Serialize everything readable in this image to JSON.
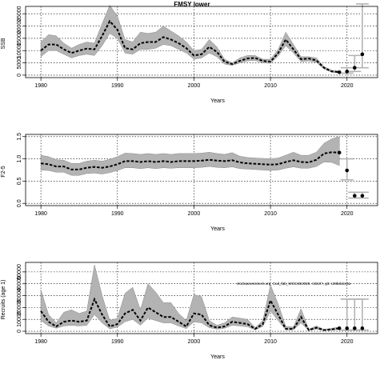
{
  "figure": {
    "title": "FMSY lower",
    "annotation": "stockassessment.org, Cod_fab_WGCSE2020, r1519?, git: c28bdc2e4a"
  },
  "chart_data": [
    {
      "type": "line",
      "title": "FMSY lower",
      "xlabel": "Years",
      "ylabel": "SSB",
      "xlim": [
        1978,
        2024
      ],
      "ylim": [
        -1000,
        28000
      ],
      "xticks": [
        1980,
        1990,
        2000,
        2010,
        2020
      ],
      "yticks": [
        0,
        5000,
        10000,
        15000,
        20000,
        25000
      ],
      "grid": "dotted",
      "x": [
        1980,
        1981,
        1982,
        1983,
        1984,
        1985,
        1986,
        1987,
        1988,
        1989,
        1990,
        1991,
        1992,
        1993,
        1994,
        1995,
        1996,
        1997,
        1998,
        1999,
        2000,
        2001,
        2002,
        2003,
        2004,
        2005,
        2006,
        2007,
        2008,
        2009,
        2010,
        2011,
        2012,
        2013,
        2014,
        2015,
        2016,
        2017,
        2018,
        2019
      ],
      "series": [
        {
          "role": "estimate",
          "values": [
            10000,
            12500,
            12500,
            10500,
            9000,
            10000,
            10800,
            10500,
            16000,
            22000,
            18500,
            11000,
            10500,
            13000,
            13500,
            13500,
            15500,
            14500,
            13000,
            11000,
            8000,
            8500,
            11500,
            9500,
            5500,
            4500,
            5800,
            6800,
            7000,
            5800,
            5500,
            9000,
            14500,
            10500,
            6500,
            6800,
            6000,
            3000,
            1500,
            1200
          ]
        },
        {
          "role": "upper",
          "values": [
            13500,
            16500,
            16000,
            13000,
            11000,
            12500,
            13500,
            13000,
            21000,
            28500,
            24000,
            14500,
            13500,
            17500,
            17000,
            17500,
            20000,
            18000,
            16000,
            13500,
            10000,
            10500,
            14500,
            11500,
            6500,
            5000,
            7000,
            8000,
            8000,
            6500,
            6500,
            10500,
            17500,
            12500,
            7500,
            7500,
            7000,
            3500,
            2000,
            1600
          ]
        },
        {
          "role": "lower",
          "values": [
            7500,
            10000,
            10000,
            8500,
            7000,
            8000,
            8500,
            8000,
            12000,
            17000,
            15000,
            9000,
            8500,
            10500,
            10500,
            11000,
            12500,
            12000,
            10500,
            9000,
            6500,
            7000,
            9000,
            7500,
            4500,
            4000,
            5000,
            5800,
            6000,
            5000,
            4800,
            7800,
            12000,
            9000,
            5500,
            5800,
            5200,
            2500,
            1200,
            900
          ]
        }
      ],
      "forecast": {
        "x": [
          2019,
          2020,
          2021,
          2022
        ],
        "median": [
          1200,
          1500,
          3000,
          8500
        ],
        "upper": [
          2000,
          3000,
          8000,
          29000
        ],
        "lower": [
          800,
          800,
          1500,
          3000
        ]
      }
    },
    {
      "type": "line",
      "xlabel": "Years",
      "ylabel": "F2-5",
      "xlim": [
        1978,
        2024
      ],
      "ylim": [
        -0.05,
        1.55
      ],
      "xticks": [
        1980,
        1990,
        2000,
        2010,
        2020
      ],
      "yticks": [
        "0.0",
        "0.5",
        "1.0",
        "1.5"
      ],
      "grid": "dotted",
      "x": [
        1980,
        1981,
        1982,
        1983,
        1984,
        1985,
        1986,
        1987,
        1988,
        1989,
        1990,
        1991,
        1992,
        1993,
        1994,
        1995,
        1996,
        1997,
        1998,
        1999,
        2000,
        2001,
        2002,
        2003,
        2004,
        2005,
        2006,
        2007,
        2008,
        2009,
        2010,
        2011,
        2012,
        2013,
        2014,
        2015,
        2016,
        2017,
        2018,
        2019
      ],
      "series": [
        {
          "role": "estimate",
          "values": [
            0.9,
            0.88,
            0.83,
            0.83,
            0.76,
            0.76,
            0.8,
            0.82,
            0.8,
            0.83,
            0.88,
            0.95,
            0.95,
            0.93,
            0.95,
            0.93,
            0.95,
            0.93,
            0.95,
            0.95,
            0.95,
            0.96,
            0.98,
            0.96,
            0.95,
            0.97,
            0.92,
            0.9,
            0.89,
            0.88,
            0.87,
            0.88,
            0.93,
            0.97,
            0.93,
            0.92,
            0.98,
            1.12,
            1.15,
            1.14
          ]
        },
        {
          "role": "upper",
          "values": [
            1.08,
            1.05,
            0.98,
            0.97,
            0.9,
            0.9,
            0.95,
            0.97,
            0.95,
            0.99,
            1.05,
            1.13,
            1.12,
            1.1,
            1.12,
            1.1,
            1.12,
            1.1,
            1.12,
            1.12,
            1.12,
            1.13,
            1.15,
            1.12,
            1.1,
            1.14,
            1.06,
            1.03,
            1.02,
            1.01,
            1.0,
            1.02,
            1.08,
            1.15,
            1.08,
            1.08,
            1.15,
            1.35,
            1.45,
            1.5
          ]
        },
        {
          "role": "lower",
          "values": [
            0.75,
            0.74,
            0.7,
            0.7,
            0.63,
            0.63,
            0.67,
            0.68,
            0.66,
            0.69,
            0.74,
            0.8,
            0.8,
            0.78,
            0.8,
            0.78,
            0.8,
            0.79,
            0.8,
            0.8,
            0.8,
            0.81,
            0.83,
            0.81,
            0.8,
            0.82,
            0.78,
            0.77,
            0.76,
            0.75,
            0.74,
            0.75,
            0.79,
            0.82,
            0.79,
            0.79,
            0.83,
            0.93,
            0.92,
            0.85
          ]
        }
      ],
      "forecast": {
        "x": [
          2019,
          2020,
          2021,
          2022
        ],
        "median": [
          1.14,
          0.74,
          0.17,
          0.17
        ],
        "upper": [
          1.5,
          1.0,
          0.25,
          0.25
        ],
        "lower": [
          0.85,
          0.53,
          0.12,
          0.12
        ]
      }
    },
    {
      "type": "line",
      "xlabel": "Years",
      "ylabel": "Recruits (age 1)",
      "xlim": [
        1978,
        2024
      ],
      "ylim": [
        -2000,
        58000
      ],
      "xticks": [
        1980,
        1990,
        2000,
        2010,
        2020
      ],
      "yticks": [
        0,
        10000,
        20000,
        30000,
        40000,
        50000
      ],
      "grid": "dotted",
      "x": [
        1980,
        1981,
        1982,
        1983,
        1984,
        1985,
        1986,
        1987,
        1988,
        1989,
        1990,
        1991,
        1992,
        1993,
        1994,
        1995,
        1996,
        1997,
        1998,
        1999,
        2000,
        2001,
        2002,
        2003,
        2004,
        2005,
        2006,
        2007,
        2008,
        2009,
        2010,
        2011,
        2012,
        2013,
        2014,
        2015,
        2016,
        2017,
        2018,
        2019
      ],
      "series": [
        {
          "role": "estimate",
          "values": [
            17000,
            8000,
            4000,
            8000,
            9000,
            8000,
            9000,
            27000,
            14000,
            4000,
            6000,
            15000,
            18000,
            9000,
            20000,
            16000,
            12000,
            12000,
            8000,
            4000,
            15000,
            14000,
            5000,
            3000,
            4000,
            8000,
            7000,
            6000,
            2000,
            6000,
            26000,
            14000,
            2000,
            2000,
            12000,
            1000,
            3000,
            1000,
            1500,
            2500
          ]
        },
        {
          "role": "upper",
          "values": [
            35000,
            14000,
            7000,
            16000,
            18000,
            15000,
            17000,
            56000,
            30000,
            9000,
            11000,
            32000,
            37000,
            18000,
            40000,
            33000,
            24000,
            24000,
            15000,
            9000,
            31000,
            29000,
            9000,
            5000,
            7000,
            12000,
            11000,
            10000,
            3000,
            9000,
            39000,
            23000,
            4000,
            3500,
            19000,
            1800,
            4500,
            1600,
            2500,
            3500
          ]
        },
        {
          "role": "lower",
          "values": [
            9000,
            4500,
            2500,
            4500,
            5000,
            4500,
            5000,
            14000,
            7000,
            2000,
            3500,
            8000,
            10000,
            5000,
            11000,
            9000,
            7000,
            7000,
            4500,
            2200,
            8000,
            7000,
            3000,
            1800,
            2500,
            5000,
            4500,
            3800,
            1200,
            4000,
            17000,
            9000,
            1200,
            1200,
            7000,
            600,
            1800,
            600,
            900,
            1500
          ]
        }
      ],
      "forecast": {
        "x": [
          2019,
          2020,
          2021,
          2022
        ],
        "median": [
          2500,
          2500,
          2500,
          2500
        ],
        "upper": [
          3500,
          27000,
          27000,
          27000
        ],
        "lower": [
          1500,
          1000,
          1000,
          1000
        ]
      }
    }
  ]
}
